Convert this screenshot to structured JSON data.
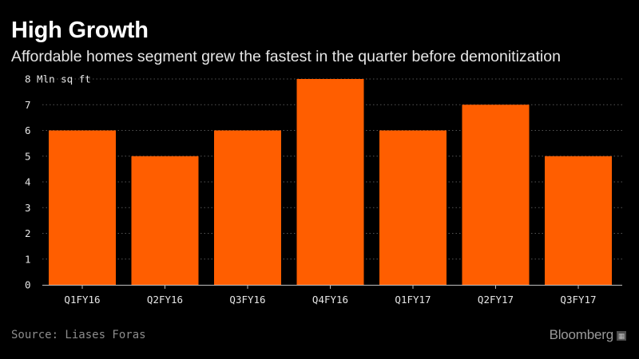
{
  "header": {
    "title": "High Growth",
    "subtitle": "Affordable homes segment grew the fastest in the quarter before demonitization"
  },
  "footer": {
    "source": "Source: Liases Foras",
    "brand": "Bloomberg"
  },
  "colors": {
    "background": "#000000",
    "bar": "#ff5e00",
    "grid": "#555555",
    "text": "#e6e6e6"
  },
  "icons": {
    "brand_icon": "chart-icon"
  },
  "chart_data": {
    "type": "bar",
    "categories": [
      "Q1FY16",
      "Q2FY16",
      "Q3FY16",
      "Q4FY16",
      "Q1FY17",
      "Q2FY17",
      "Q3FY17"
    ],
    "series": [
      {
        "values": [
          6,
          5,
          6,
          8,
          6,
          7,
          5
        ]
      }
    ],
    "ylabel": "Mln sq ft",
    "ylim": [
      0,
      8
    ],
    "yticks": [
      0,
      1,
      2,
      3,
      4,
      5,
      6,
      7,
      8
    ],
    "grid": true
  }
}
